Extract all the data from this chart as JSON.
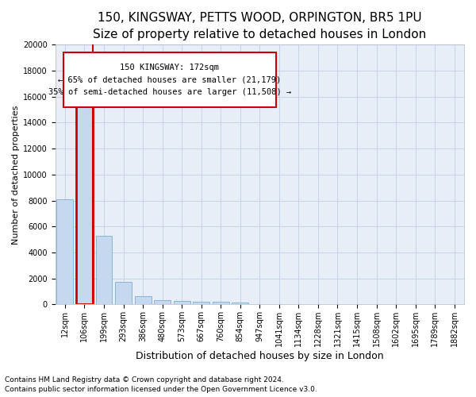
{
  "title1": "150, KINGSWAY, PETTS WOOD, ORPINGTON, BR5 1PU",
  "title2": "Size of property relative to detached houses in London",
  "xlabel": "Distribution of detached houses by size in London",
  "ylabel": "Number of detached properties",
  "categories": [
    "12sqm",
    "106sqm",
    "199sqm",
    "293sqm",
    "386sqm",
    "480sqm",
    "573sqm",
    "667sqm",
    "760sqm",
    "854sqm",
    "947sqm",
    "1041sqm",
    "1134sqm",
    "1228sqm",
    "1321sqm",
    "1415sqm",
    "1508sqm",
    "1602sqm",
    "1695sqm",
    "1789sqm",
    "1882sqm"
  ],
  "values": [
    8100,
    16500,
    5300,
    1750,
    650,
    350,
    275,
    200,
    200,
    120,
    0,
    0,
    0,
    0,
    0,
    0,
    0,
    0,
    0,
    0,
    0
  ],
  "bar_color": "#c5d8ef",
  "bar_edge_color": "#7aafd4",
  "highlight_bar_index": 1,
  "property_label": "150 KINGSWAY: 172sqm",
  "annotation_line1": "← 65% of detached houses are smaller (21,179)",
  "annotation_line2": "35% of semi-detached houses are larger (11,508) →",
  "annotation_box_color": "#ffffff",
  "annotation_box_edge": "#cc0000",
  "red_line_color": "#cc0000",
  "ylim": [
    0,
    20000
  ],
  "yticks": [
    0,
    2000,
    4000,
    6000,
    8000,
    10000,
    12000,
    14000,
    16000,
    18000,
    20000
  ],
  "grid_color": "#c8d4e8",
  "bg_color": "#e8eef8",
  "footer1": "Contains HM Land Registry data © Crown copyright and database right 2024.",
  "footer2": "Contains public sector information licensed under the Open Government Licence v3.0.",
  "title1_fontsize": 11,
  "title2_fontsize": 9.5,
  "xlabel_fontsize": 9,
  "ylabel_fontsize": 8,
  "tick_fontsize": 7,
  "annotation_fontsize": 7.5,
  "footer_fontsize": 6.5
}
